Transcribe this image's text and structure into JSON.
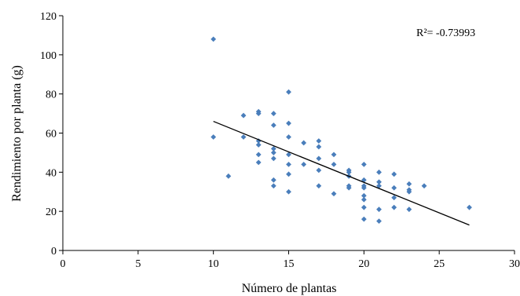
{
  "chart_data": {
    "type": "scatter",
    "title": "",
    "xlabel": "Número de plantas",
    "ylabel": "Rendimiento  por planta (g)",
    "xlim": [
      0,
      30
    ],
    "ylim": [
      0,
      120
    ],
    "xticks": [
      0,
      5,
      10,
      15,
      20,
      25,
      30
    ],
    "yticks": [
      0,
      20,
      40,
      60,
      80,
      100,
      120
    ],
    "grid": false,
    "legend": "none",
    "annotation": "R²= -0.73993",
    "point_color": "#4a7ebb",
    "trend_color": "#000000",
    "trendline": {
      "x": [
        10,
        27
      ],
      "y": [
        66,
        13
      ]
    },
    "points": [
      [
        10,
        108
      ],
      [
        10,
        58
      ],
      [
        11,
        38
      ],
      [
        12,
        69
      ],
      [
        12,
        58
      ],
      [
        13,
        71
      ],
      [
        13,
        70
      ],
      [
        13,
        56
      ],
      [
        13,
        54
      ],
      [
        13,
        49
      ],
      [
        13,
        45
      ],
      [
        14,
        70
      ],
      [
        14,
        64
      ],
      [
        14,
        52
      ],
      [
        14,
        50
      ],
      [
        14,
        47
      ],
      [
        14,
        36
      ],
      [
        14,
        33
      ],
      [
        15,
        81
      ],
      [
        15,
        65
      ],
      [
        15,
        58
      ],
      [
        15,
        49
      ],
      [
        15,
        44
      ],
      [
        15,
        39
      ],
      [
        15,
        30
      ],
      [
        16,
        55
      ],
      [
        16,
        44
      ],
      [
        17,
        56
      ],
      [
        17,
        53
      ],
      [
        17,
        47
      ],
      [
        17,
        41
      ],
      [
        17,
        33
      ],
      [
        18,
        49
      ],
      [
        18,
        44
      ],
      [
        18,
        29
      ],
      [
        19,
        41
      ],
      [
        19,
        40
      ],
      [
        19,
        38
      ],
      [
        19,
        33
      ],
      [
        19,
        32
      ],
      [
        20,
        44
      ],
      [
        20,
        36
      ],
      [
        20,
        33
      ],
      [
        20,
        32
      ],
      [
        20,
        28
      ],
      [
        20,
        26
      ],
      [
        20,
        22
      ],
      [
        20,
        16
      ],
      [
        21,
        40
      ],
      [
        21,
        35
      ],
      [
        21,
        33
      ],
      [
        21,
        21
      ],
      [
        21,
        15
      ],
      [
        22,
        39
      ],
      [
        22,
        32
      ],
      [
        22,
        27
      ],
      [
        22,
        22
      ],
      [
        23,
        34
      ],
      [
        23,
        31
      ],
      [
        23,
        30
      ],
      [
        23,
        21
      ],
      [
        24,
        33
      ],
      [
        27,
        22
      ]
    ]
  }
}
